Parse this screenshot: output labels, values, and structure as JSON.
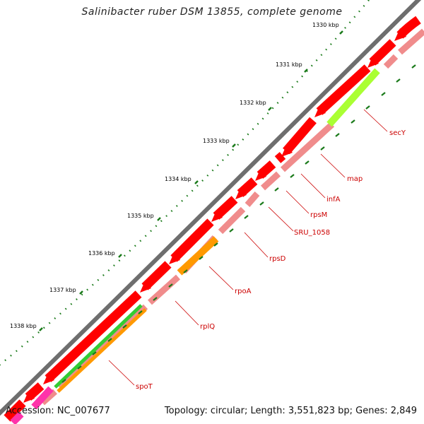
{
  "title": "Salinibacter ruber DSM 13855, complete genome",
  "footer": {
    "accession": "Accession: NC_007677",
    "summary": "Topology: circular; Length: 3,551,823 bp; Genes: 2,849"
  },
  "ticks": [
    "1330 kbp",
    "1331 kbp",
    "1332 kbp",
    "1333 kbp",
    "1334 kbp",
    "1335 kbp",
    "1336 kbp",
    "1337 kbp",
    "1338 kbp"
  ],
  "gene_labels": [
    "secY",
    "map",
    "infA",
    "rpsM",
    "SRU_1058",
    "rpsD",
    "rpoA",
    "rplQ",
    "spoT"
  ],
  "colors": {
    "backbone": "#7a7a7a",
    "cds_forward": "#ff0000",
    "cds_track": "#f08c8c",
    "cog_green_yellow": "#aaff33",
    "cog_orange": "#ff9900",
    "cog_green": "#33cc33",
    "cog_magenta": "#ff33aa",
    "tick": "#1a7a1a",
    "label": "#cc0000"
  }
}
